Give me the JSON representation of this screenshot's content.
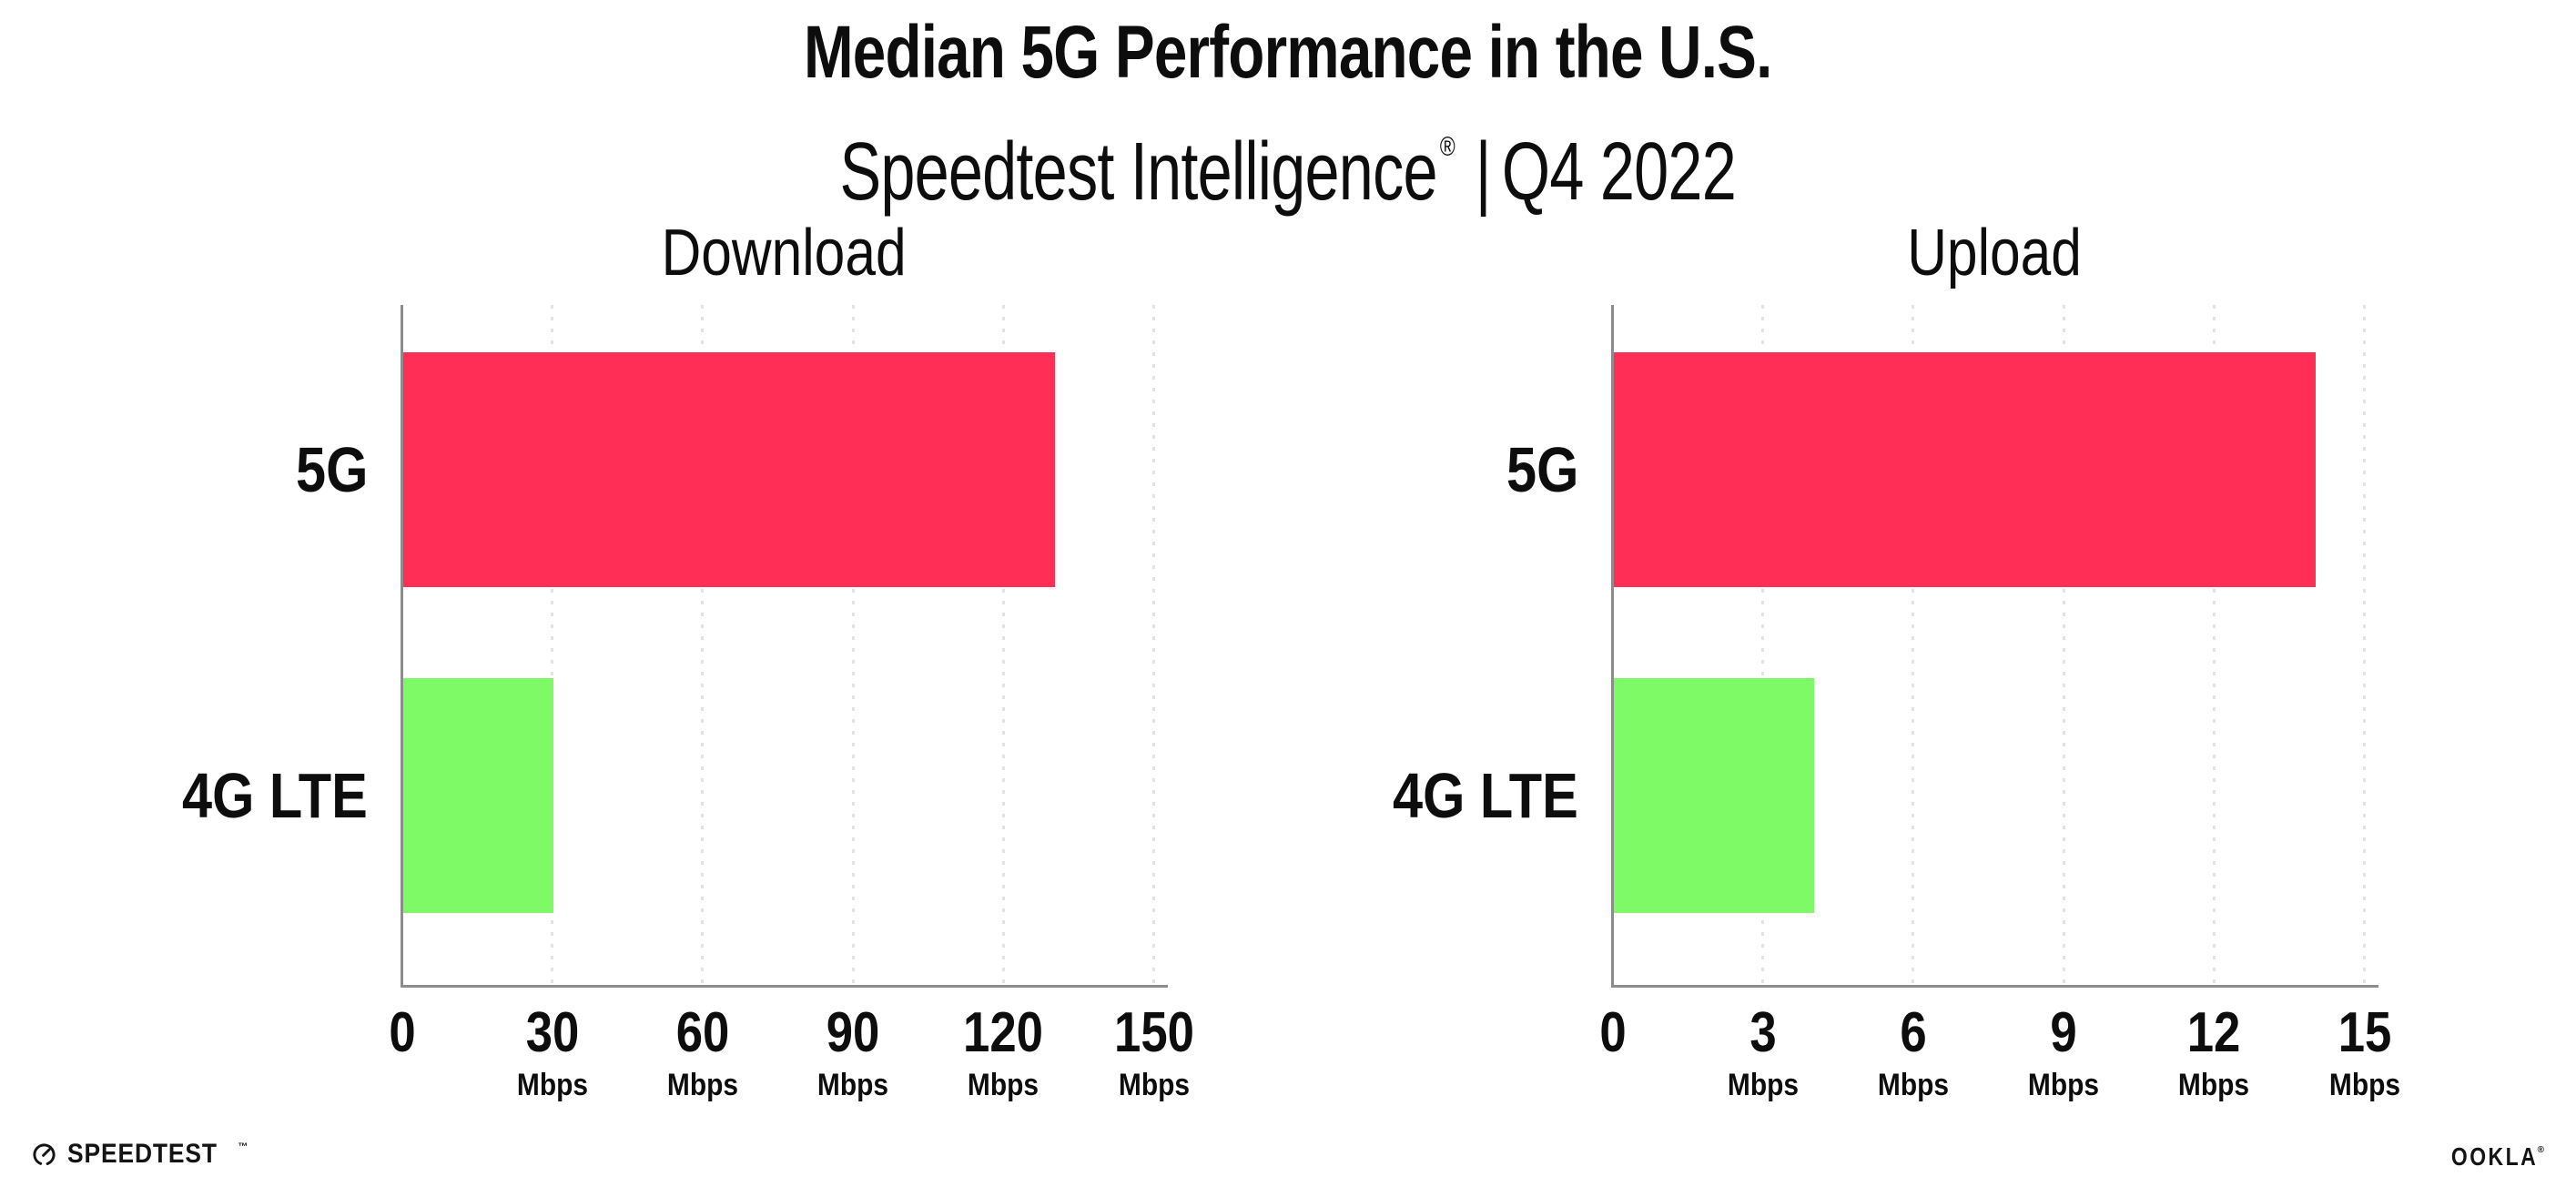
{
  "header": {
    "title": "Median 5G Performance in the U.S.",
    "subtitle": {
      "brand": "Speedtest Intelligence",
      "registered": "®",
      "separator": "|",
      "period": "Q4 2022"
    }
  },
  "chart_data": [
    {
      "type": "bar",
      "orientation": "horizontal",
      "title": "Download",
      "categories": [
        "5G",
        "4G LTE"
      ],
      "values": [
        130,
        30
      ],
      "value_unit": "Mbps",
      "xlim": [
        0,
        150
      ],
      "xticks": [
        0,
        30,
        60,
        90,
        120,
        150
      ],
      "xtick_unit": "Mbps",
      "grid": "vertical-dotted",
      "legend": "none",
      "bar_colors": [
        "#FF2E56",
        "#7DFA66"
      ]
    },
    {
      "type": "bar",
      "orientation": "horizontal",
      "title": "Upload",
      "categories": [
        "5G",
        "4G LTE"
      ],
      "values": [
        14,
        4
      ],
      "value_unit": "Mbps",
      "xlim": [
        0,
        15
      ],
      "xticks": [
        0,
        3,
        6,
        9,
        12,
        15
      ],
      "xtick_unit": "Mbps",
      "grid": "vertical-dotted",
      "legend": "none",
      "bar_colors": [
        "#FF2E56",
        "#7DFA66"
      ]
    }
  ],
  "footer": {
    "speedtest": {
      "label": "SPEEDTEST",
      "trademark": "™"
    },
    "ookla": {
      "label": "OOKLA",
      "registered": "®"
    }
  },
  "colors": {
    "bar_5g": "#FF2E56",
    "bar_4g_lte": "#7DFA66",
    "axis": "#8C8C8C",
    "gridline": "#E2E2EB",
    "text": "#0D0D0D",
    "background": "#FFFFFF"
  }
}
